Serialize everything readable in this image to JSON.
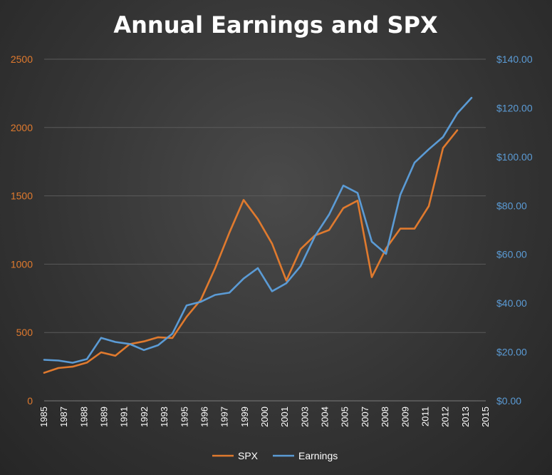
{
  "chart_data": {
    "type": "line",
    "title": "Annual Earnings and SPX",
    "x_tick_labels": [
      "1985",
      "1987",
      "1988",
      "1989",
      "1991",
      "1992",
      "1993",
      "1995",
      "1996",
      "1997",
      "1999",
      "2000",
      "2001",
      "2003",
      "2004",
      "2005",
      "2007",
      "2008",
      "2009",
      "2011",
      "2012",
      "2013",
      "2015"
    ],
    "x_range": [
      1985,
      2016
    ],
    "y_left": {
      "ticks": [
        "0",
        "500",
        "1000",
        "1500",
        "2000",
        "2500"
      ],
      "range": [
        0,
        2500
      ],
      "color": "#e07a2e"
    },
    "y_right": {
      "ticks": [
        "$0.00",
        "$20.00",
        "$40.00",
        "$60.00",
        "$80.00",
        "$100.00",
        "$120.00",
        "$140.00"
      ],
      "range": [
        0,
        140
      ],
      "color": "#5b9bd5"
    },
    "grid": true,
    "legend_position": "bottom",
    "series": [
      {
        "name": "SPX",
        "axis": "left",
        "color": "#e07a2e",
        "x": [
          1985,
          1986,
          1987,
          1988,
          1989,
          1990,
          1991,
          1992,
          1993,
          1994,
          1995,
          1996,
          1997,
          1998,
          1999,
          2000,
          2001,
          2002,
          2003,
          2004,
          2005,
          2006,
          2007,
          2008,
          2009,
          2010,
          2011,
          2012,
          2013,
          2014
        ],
        "y": [
          205,
          240,
          250,
          280,
          355,
          330,
          415,
          435,
          465,
          460,
          615,
          740,
          970,
          1230,
          1470,
          1330,
          1150,
          880,
          1110,
          1210,
          1250,
          1410,
          1465,
          905,
          1115,
          1260,
          1260,
          1425,
          1850,
          1980
        ]
      },
      {
        "name": "Earnings",
        "axis": "right",
        "color": "#5b9bd5",
        "x": [
          1985,
          1986,
          1987,
          1988,
          1989,
          1990,
          1991,
          1992,
          1993,
          1994,
          1995,
          1996,
          1997,
          1998,
          1999,
          2000,
          2001,
          2002,
          2003,
          2004,
          2005,
          2006,
          2007,
          2008,
          2009,
          2010,
          2011,
          2012,
          2013,
          2014,
          2015
        ],
        "y": [
          16.8,
          16.5,
          15.6,
          17.1,
          25.8,
          24.1,
          23.3,
          20.8,
          22.8,
          27.5,
          39.1,
          40.6,
          43.4,
          44.3,
          50.1,
          54.4,
          44.9,
          48.2,
          55.2,
          67.4,
          76.3,
          88.2,
          85.2,
          65.2,
          60.2,
          84.4,
          97.6,
          103.1,
          108.1,
          117.8,
          124.2
        ]
      }
    ]
  }
}
